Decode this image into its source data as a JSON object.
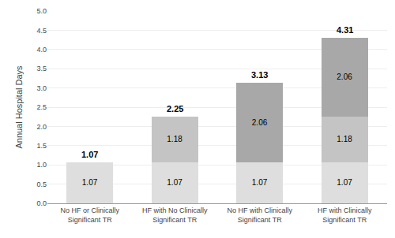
{
  "chart_data": {
    "type": "bar",
    "stacked": true,
    "data_labels": true,
    "grid": true,
    "ylabel": "Annual Hospital Days",
    "categories": [
      "No HF or Clinically\nSignificant TR",
      "HF with No Clinically\nSignificant TR",
      "No HF with Clinically\nSignificant TR",
      "HF with Clinically\nSignificant TR"
    ],
    "series": [
      {
        "color": "#dedede",
        "values": [
          1.07,
          1.07,
          1.07,
          1.07
        ]
      },
      {
        "color": "#c4c4c4",
        "values": [
          0.0,
          1.18,
          0.0,
          1.18
        ]
      },
      {
        "color": "#a8a8a8",
        "values": [
          0.0,
          0.0,
          2.06,
          2.06
        ]
      }
    ],
    "totals": [
      1.07,
      2.25,
      3.13,
      4.31
    ],
    "ylim": [
      0,
      5.0
    ],
    "yticks": [
      {
        "value": 0,
        "label": "0.0"
      },
      0.5,
      {
        "value": 1,
        "label": "1.0"
      },
      1.5,
      {
        "value": 2,
        "label": "2.0"
      },
      2.5,
      {
        "value": 3,
        "label": "3.0"
      },
      3.5,
      {
        "value": 4,
        "label": "4.0"
      },
      4.5,
      {
        "value": 5,
        "label": "5.0"
      }
    ]
  }
}
